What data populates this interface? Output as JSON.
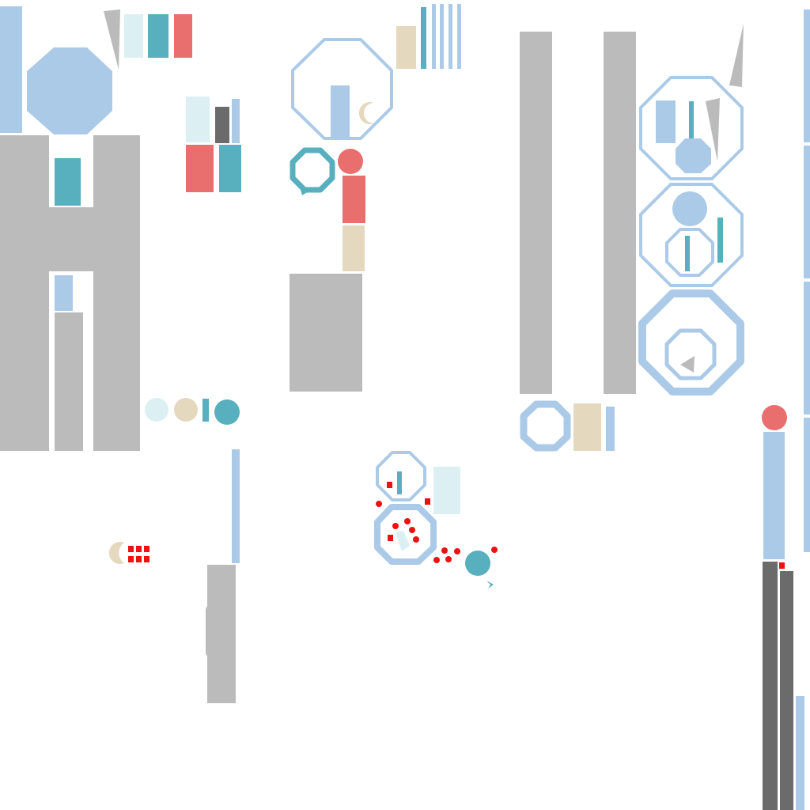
{
  "palette": {
    "blue": "#abcae8",
    "light_blue": "#dcf0f4",
    "teal": "#58afbd",
    "red": "#e96e6e",
    "tan": "#e4d9be",
    "gray": "#bbbbbb",
    "dark_gray": "#6b6b6b",
    "marker_red": "#ee1111",
    "background": "#ffffff"
  },
  "shapes": {
    "hexagons": "octagon-icon",
    "wedges": "wedge-icon",
    "crescents": "crescent-icon",
    "markers": "dot-marker-icon"
  }
}
